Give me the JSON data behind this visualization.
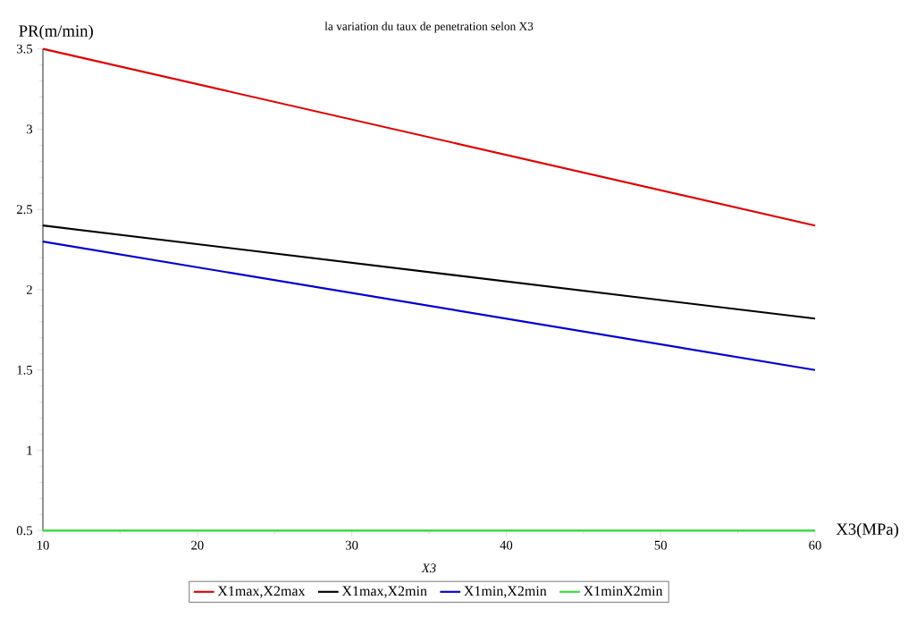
{
  "chart_data": {
    "type": "line",
    "title": "la variation du taux de penetration  selon X3",
    "xlabel": "X3(MPa)",
    "ylabel": "PR(m/min)",
    "annotations": [
      "X3"
    ],
    "x": [
      10,
      60
    ],
    "series": [
      {
        "name": "X1max,X2max",
        "color": "#e00000",
        "values": [
          3.5,
          2.4
        ]
      },
      {
        "name": "X1max,X2min",
        "color": "#000000",
        "values": [
          2.4,
          1.82
        ]
      },
      {
        "name": "X1min,X2min",
        "color": "#0000d0",
        "values": [
          2.3,
          1.5
        ]
      },
      {
        "name": "X1minX2min",
        "color": "#33dd33",
        "values": [
          0.5,
          0.5
        ]
      }
    ],
    "xlim": [
      10,
      60
    ],
    "ylim": [
      0.5,
      3.5
    ],
    "xticks": [
      10,
      20,
      30,
      40,
      50,
      60
    ],
    "yticks": [
      0.5,
      1,
      1.5,
      2,
      2.5,
      3,
      3.5
    ],
    "legend": "bottom"
  }
}
